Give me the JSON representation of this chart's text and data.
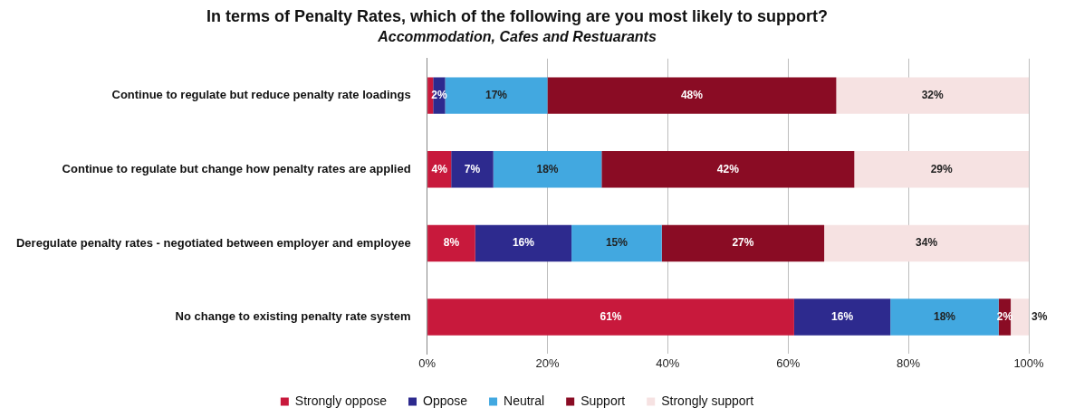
{
  "chart_data": {
    "type": "bar",
    "orientation": "horizontal",
    "stacked": true,
    "title": "In terms of Penalty Rates, which of the following are you most likely to support?",
    "subtitle": "Accommodation, Cafes and Restuarants",
    "categories": [
      "Continue to regulate but reduce penalty rate loadings",
      "Continue to regulate but change how penalty rates are applied",
      "Deregulate penalty rates - negotiated between employer and employee",
      "No change to existing penalty rate system"
    ],
    "series": [
      {
        "name": "Strongly oppose",
        "color": "#c8193c",
        "values": [
          1,
          4,
          8,
          61
        ],
        "value_labels": [
          null,
          "4%",
          "8%",
          "61%"
        ]
      },
      {
        "name": "Oppose",
        "color": "#2d2a8e",
        "values": [
          2,
          7,
          16,
          16
        ],
        "value_labels": [
          "2%",
          "7%",
          "16%",
          "16%"
        ]
      },
      {
        "name": "Neutral",
        "color": "#42a8e0",
        "values": [
          17,
          18,
          15,
          18
        ],
        "value_labels": [
          "17%",
          "18%",
          "15%",
          "18%"
        ]
      },
      {
        "name": "Support",
        "color": "#8a0c24",
        "values": [
          48,
          42,
          27,
          2
        ],
        "value_labels": [
          "48%",
          "42%",
          "27%",
          "2%"
        ]
      },
      {
        "name": "Strongly support",
        "color": "#f6e2e2",
        "values": [
          32,
          29,
          34,
          3
        ],
        "value_labels": [
          "32%",
          "29%",
          "34%",
          "3%"
        ]
      }
    ],
    "xlim": [
      0,
      100
    ],
    "xticks": [
      {
        "value": 0,
        "label": "0%"
      },
      {
        "value": 20,
        "label": "20%"
      },
      {
        "value": 40,
        "label": "40%"
      },
      {
        "value": 60,
        "label": "60%"
      },
      {
        "value": 80,
        "label": "80%"
      },
      {
        "value": 100,
        "label": "100%"
      }
    ],
    "grid": "x",
    "legend": "bottom"
  }
}
